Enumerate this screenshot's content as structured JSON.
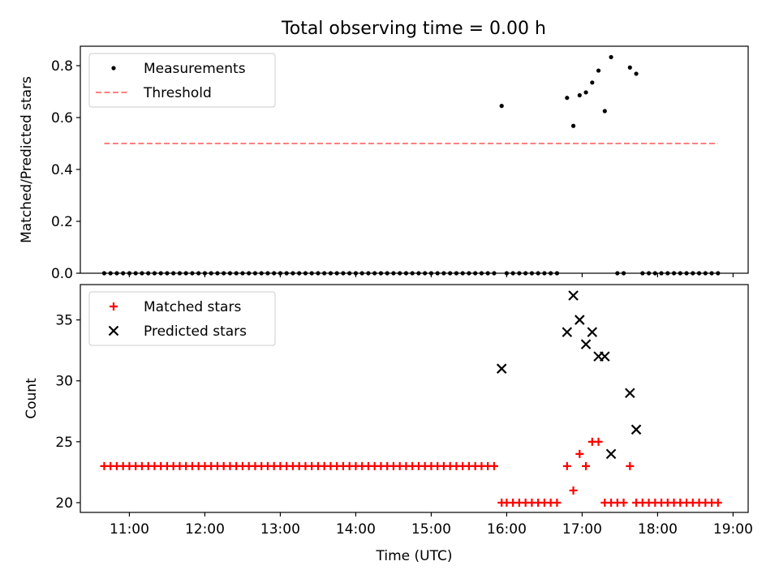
{
  "chart_data": [
    {
      "type": "scatter",
      "title": "Total observing time = 0.00 h",
      "ylabel": "Matched/Predicted stars",
      "xlabel": "",
      "ylim": [
        0,
        0.875
      ],
      "yticks": [
        0.0,
        0.2,
        0.4,
        0.6,
        0.8
      ],
      "ytick_labels": [
        "0.0",
        "0.2",
        "0.4",
        "0.6",
        "0.8"
      ],
      "legend_position": "upper-left",
      "series": [
        {
          "name": "Measurements",
          "marker": "dot",
          "color": "#000000",
          "points": [
            [
              "10:40",
              0
            ],
            [
              "10:45",
              0
            ],
            [
              "10:50",
              0
            ],
            [
              "10:55",
              0
            ],
            [
              "11:00",
              0
            ],
            [
              "11:05",
              0
            ],
            [
              "11:10",
              0
            ],
            [
              "11:15",
              0
            ],
            [
              "11:20",
              0
            ],
            [
              "11:25",
              0
            ],
            [
              "11:30",
              0
            ],
            [
              "11:35",
              0
            ],
            [
              "11:40",
              0
            ],
            [
              "11:45",
              0
            ],
            [
              "11:50",
              0
            ],
            [
              "11:55",
              0
            ],
            [
              "12:00",
              0
            ],
            [
              "12:05",
              0
            ],
            [
              "12:10",
              0
            ],
            [
              "12:15",
              0
            ],
            [
              "12:20",
              0
            ],
            [
              "12:25",
              0
            ],
            [
              "12:30",
              0
            ],
            [
              "12:35",
              0
            ],
            [
              "12:40",
              0
            ],
            [
              "12:45",
              0
            ],
            [
              "12:50",
              0
            ],
            [
              "12:55",
              0
            ],
            [
              "13:00",
              0
            ],
            [
              "13:05",
              0
            ],
            [
              "13:10",
              0
            ],
            [
              "13:15",
              0
            ],
            [
              "13:20",
              0
            ],
            [
              "13:25",
              0
            ],
            [
              "13:30",
              0
            ],
            [
              "13:35",
              0
            ],
            [
              "13:40",
              0
            ],
            [
              "13:45",
              0
            ],
            [
              "13:50",
              0
            ],
            [
              "13:55",
              0
            ],
            [
              "14:00",
              0
            ],
            [
              "14:05",
              0
            ],
            [
              "14:10",
              0
            ],
            [
              "14:15",
              0
            ],
            [
              "14:20",
              0
            ],
            [
              "14:25",
              0
            ],
            [
              "14:30",
              0
            ],
            [
              "14:35",
              0
            ],
            [
              "14:40",
              0
            ],
            [
              "14:45",
              0
            ],
            [
              "14:50",
              0
            ],
            [
              "14:55",
              0
            ],
            [
              "15:00",
              0
            ],
            [
              "15:05",
              0
            ],
            [
              "15:10",
              0
            ],
            [
              "15:15",
              0
            ],
            [
              "15:20",
              0
            ],
            [
              "15:25",
              0
            ],
            [
              "15:30",
              0
            ],
            [
              "15:35",
              0
            ],
            [
              "15:40",
              0
            ],
            [
              "15:45",
              0
            ],
            [
              "15:50",
              0
            ],
            [
              "15:56",
              0.645
            ],
            [
              "16:00",
              0
            ],
            [
              "16:05",
              0
            ],
            [
              "16:10",
              0
            ],
            [
              "16:15",
              0
            ],
            [
              "16:20",
              0
            ],
            [
              "16:25",
              0
            ],
            [
              "16:30",
              0
            ],
            [
              "16:35",
              0
            ],
            [
              "16:40",
              0
            ],
            [
              "16:48",
              0.676
            ],
            [
              "16:53",
              0.568
            ],
            [
              "16:58",
              0.686
            ],
            [
              "17:03",
              0.697
            ],
            [
              "17:08",
              0.735
            ],
            [
              "17:13",
              0.781
            ],
            [
              "17:18",
              0.625
            ],
            [
              "17:23",
              0.833
            ],
            [
              "17:28",
              0
            ],
            [
              "17:33",
              0
            ],
            [
              "17:38",
              0.793
            ],
            [
              "17:43",
              0.769
            ],
            [
              "17:48",
              0
            ],
            [
              "17:53",
              0
            ],
            [
              "17:58",
              0
            ],
            [
              "18:03",
              0
            ],
            [
              "18:08",
              0
            ],
            [
              "18:13",
              0
            ],
            [
              "18:18",
              0
            ],
            [
              "18:23",
              0
            ],
            [
              "18:28",
              0
            ],
            [
              "18:33",
              0
            ],
            [
              "18:38",
              0
            ],
            [
              "18:43",
              0
            ],
            [
              "18:48",
              0
            ]
          ]
        },
        {
          "name": "Threshold",
          "marker": "dashed-line",
          "color": "#ff7f7f",
          "points": [
            [
              "10:40",
              0.5
            ],
            [
              "18:48",
              0.5
            ]
          ]
        }
      ]
    },
    {
      "type": "scatter",
      "title": "",
      "ylabel": "Count",
      "xlabel": "Time (UTC)",
      "ylim": [
        19.2,
        37.9
      ],
      "yticks": [
        20,
        25,
        30,
        35
      ],
      "ytick_labels": [
        "20",
        "25",
        "30",
        "35"
      ],
      "x_tick_labels": [
        "11:00",
        "12:00",
        "13:00",
        "14:00",
        "15:00",
        "16:00",
        "17:00",
        "18:00",
        "19:00"
      ],
      "xlim": [
        "10:21",
        "19:12"
      ],
      "legend_position": "upper-left",
      "series": [
        {
          "name": "Matched stars",
          "marker": "plus",
          "color": "#ff0000",
          "points": [
            [
              "10:40",
              23
            ],
            [
              "10:45",
              23
            ],
            [
              "10:50",
              23
            ],
            [
              "10:55",
              23
            ],
            [
              "11:00",
              23
            ],
            [
              "11:05",
              23
            ],
            [
              "11:10",
              23
            ],
            [
              "11:15",
              23
            ],
            [
              "11:20",
              23
            ],
            [
              "11:25",
              23
            ],
            [
              "11:30",
              23
            ],
            [
              "11:35",
              23
            ],
            [
              "11:40",
              23
            ],
            [
              "11:45",
              23
            ],
            [
              "11:50",
              23
            ],
            [
              "11:55",
              23
            ],
            [
              "12:00",
              23
            ],
            [
              "12:05",
              23
            ],
            [
              "12:10",
              23
            ],
            [
              "12:15",
              23
            ],
            [
              "12:20",
              23
            ],
            [
              "12:25",
              23
            ],
            [
              "12:30",
              23
            ],
            [
              "12:35",
              23
            ],
            [
              "12:40",
              23
            ],
            [
              "12:45",
              23
            ],
            [
              "12:50",
              23
            ],
            [
              "12:55",
              23
            ],
            [
              "13:00",
              23
            ],
            [
              "13:05",
              23
            ],
            [
              "13:10",
              23
            ],
            [
              "13:15",
              23
            ],
            [
              "13:20",
              23
            ],
            [
              "13:25",
              23
            ],
            [
              "13:30",
              23
            ],
            [
              "13:35",
              23
            ],
            [
              "13:40",
              23
            ],
            [
              "13:45",
              23
            ],
            [
              "13:50",
              23
            ],
            [
              "13:55",
              23
            ],
            [
              "14:00",
              23
            ],
            [
              "14:05",
              23
            ],
            [
              "14:10",
              23
            ],
            [
              "14:15",
              23
            ],
            [
              "14:20",
              23
            ],
            [
              "14:25",
              23
            ],
            [
              "14:30",
              23
            ],
            [
              "14:35",
              23
            ],
            [
              "14:40",
              23
            ],
            [
              "14:45",
              23
            ],
            [
              "14:50",
              23
            ],
            [
              "14:55",
              23
            ],
            [
              "15:00",
              23
            ],
            [
              "15:05",
              23
            ],
            [
              "15:10",
              23
            ],
            [
              "15:15",
              23
            ],
            [
              "15:20",
              23
            ],
            [
              "15:25",
              23
            ],
            [
              "15:30",
              23
            ],
            [
              "15:35",
              23
            ],
            [
              "15:40",
              23
            ],
            [
              "15:45",
              23
            ],
            [
              "15:50",
              23
            ],
            [
              "15:56",
              20
            ],
            [
              "16:00",
              20
            ],
            [
              "16:05",
              20
            ],
            [
              "16:10",
              20
            ],
            [
              "16:15",
              20
            ],
            [
              "16:20",
              20
            ],
            [
              "16:25",
              20
            ],
            [
              "16:30",
              20
            ],
            [
              "16:35",
              20
            ],
            [
              "16:40",
              20
            ],
            [
              "16:48",
              23
            ],
            [
              "16:53",
              21
            ],
            [
              "16:58",
              24
            ],
            [
              "17:03",
              23
            ],
            [
              "17:08",
              25
            ],
            [
              "17:13",
              25
            ],
            [
              "17:18",
              20
            ],
            [
              "17:23",
              20
            ],
            [
              "17:28",
              20
            ],
            [
              "17:33",
              20
            ],
            [
              "17:38",
              23
            ],
            [
              "17:43",
              20
            ],
            [
              "17:48",
              20
            ],
            [
              "17:53",
              20
            ],
            [
              "17:58",
              20
            ],
            [
              "18:03",
              20
            ],
            [
              "18:08",
              20
            ],
            [
              "18:13",
              20
            ],
            [
              "18:18",
              20
            ],
            [
              "18:23",
              20
            ],
            [
              "18:28",
              20
            ],
            [
              "18:33",
              20
            ],
            [
              "18:38",
              20
            ],
            [
              "18:43",
              20
            ],
            [
              "18:48",
              20
            ]
          ]
        },
        {
          "name": "Predicted stars",
          "marker": "x",
          "color": "#000000",
          "points": [
            [
              "15:56",
              31
            ],
            [
              "16:48",
              34
            ],
            [
              "16:53",
              37
            ],
            [
              "16:58",
              35
            ],
            [
              "17:03",
              33
            ],
            [
              "17:08",
              34
            ],
            [
              "17:13",
              32
            ],
            [
              "17:18",
              32
            ],
            [
              "17:23",
              24
            ],
            [
              "17:38",
              29
            ],
            [
              "17:43",
              26
            ]
          ]
        }
      ]
    }
  ]
}
